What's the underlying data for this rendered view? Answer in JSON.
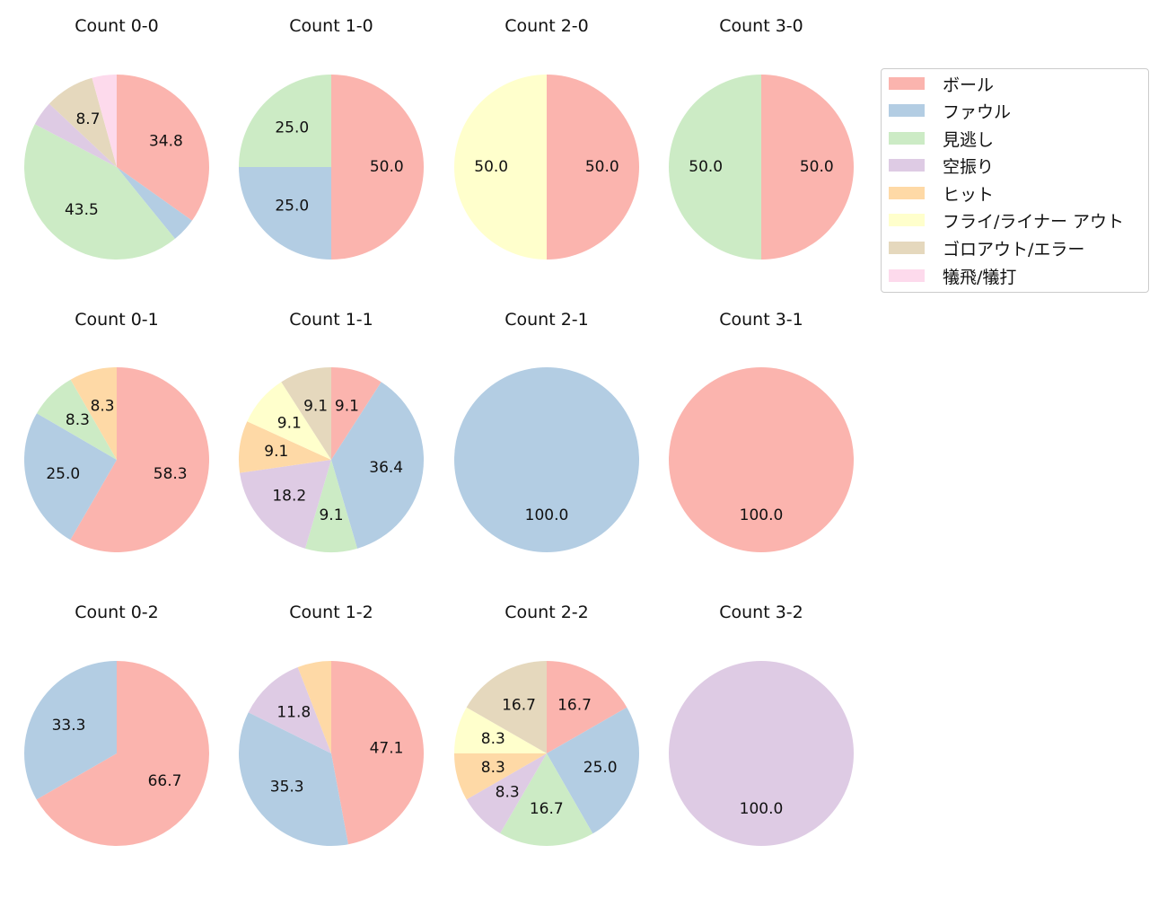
{
  "legend": {
    "items": [
      {
        "label": "ボール",
        "color": "#fbb4ae"
      },
      {
        "label": "ファウル",
        "color": "#b3cde3"
      },
      {
        "label": "見逃し",
        "color": "#ccebc5"
      },
      {
        "label": "空振り",
        "color": "#decbe4"
      },
      {
        "label": "ヒット",
        "color": "#fed9a6"
      },
      {
        "label": "フライ/ライナー アウト",
        "color": "#ffffcc"
      },
      {
        "label": "ゴロアウト/エラー",
        "color": "#e5d8bd"
      },
      {
        "label": "犠飛/犠打",
        "color": "#fddaec"
      }
    ]
  },
  "chart_data": [
    {
      "type": "pie",
      "title": "Count 0-0",
      "slices": [
        {
          "category": "ボール",
          "value": 34.8
        },
        {
          "category": "ファウル",
          "value": 4.3
        },
        {
          "category": "見逃し",
          "value": 43.5
        },
        {
          "category": "空振り",
          "value": 4.3
        },
        {
          "category": "ゴロアウト/エラー",
          "value": 8.7
        },
        {
          "category": "犠飛/犠打",
          "value": 4.3
        }
      ]
    },
    {
      "type": "pie",
      "title": "Count 1-0",
      "slices": [
        {
          "category": "ボール",
          "value": 50.0
        },
        {
          "category": "ファウル",
          "value": 25.0
        },
        {
          "category": "見逃し",
          "value": 25.0
        }
      ]
    },
    {
      "type": "pie",
      "title": "Count 2-0",
      "slices": [
        {
          "category": "ボール",
          "value": 50.0
        },
        {
          "category": "フライ/ライナー アウト",
          "value": 50.0
        }
      ]
    },
    {
      "type": "pie",
      "title": "Count 3-0",
      "slices": [
        {
          "category": "ボール",
          "value": 50.0
        },
        {
          "category": "見逃し",
          "value": 50.0
        }
      ]
    },
    {
      "type": "pie",
      "title": "Count 0-1",
      "slices": [
        {
          "category": "ボール",
          "value": 58.3
        },
        {
          "category": "ファウル",
          "value": 25.0
        },
        {
          "category": "見逃し",
          "value": 8.3
        },
        {
          "category": "ヒット",
          "value": 8.3
        }
      ]
    },
    {
      "type": "pie",
      "title": "Count 1-1",
      "slices": [
        {
          "category": "ボール",
          "value": 9.1
        },
        {
          "category": "ファウル",
          "value": 36.4
        },
        {
          "category": "見逃し",
          "value": 9.1
        },
        {
          "category": "空振り",
          "value": 18.2
        },
        {
          "category": "ヒット",
          "value": 9.1
        },
        {
          "category": "フライ/ライナー アウト",
          "value": 9.1
        },
        {
          "category": "ゴロアウト/エラー",
          "value": 9.1
        }
      ]
    },
    {
      "type": "pie",
      "title": "Count 2-1",
      "slices": [
        {
          "category": "ファウル",
          "value": 100.0
        }
      ]
    },
    {
      "type": "pie",
      "title": "Count 3-1",
      "slices": [
        {
          "category": "ボール",
          "value": 100.0
        }
      ]
    },
    {
      "type": "pie",
      "title": "Count 0-2",
      "slices": [
        {
          "category": "ボール",
          "value": 66.7
        },
        {
          "category": "ファウル",
          "value": 33.3
        }
      ]
    },
    {
      "type": "pie",
      "title": "Count 1-2",
      "slices": [
        {
          "category": "ボール",
          "value": 47.1
        },
        {
          "category": "ファウル",
          "value": 35.3
        },
        {
          "category": "空振り",
          "value": 11.8
        },
        {
          "category": "ヒット",
          "value": 5.9
        }
      ]
    },
    {
      "type": "pie",
      "title": "Count 2-2",
      "slices": [
        {
          "category": "ボール",
          "value": 16.7
        },
        {
          "category": "ファウル",
          "value": 25.0
        },
        {
          "category": "見逃し",
          "value": 16.7
        },
        {
          "category": "空振り",
          "value": 8.3
        },
        {
          "category": "ヒット",
          "value": 8.3
        },
        {
          "category": "フライ/ライナー アウト",
          "value": 8.3
        },
        {
          "category": "ゴロアウト/エラー",
          "value": 16.7
        }
      ]
    },
    {
      "type": "pie",
      "title": "Count 3-2",
      "slices": [
        {
          "category": "空振り",
          "value": 100.0
        }
      ]
    }
  ]
}
